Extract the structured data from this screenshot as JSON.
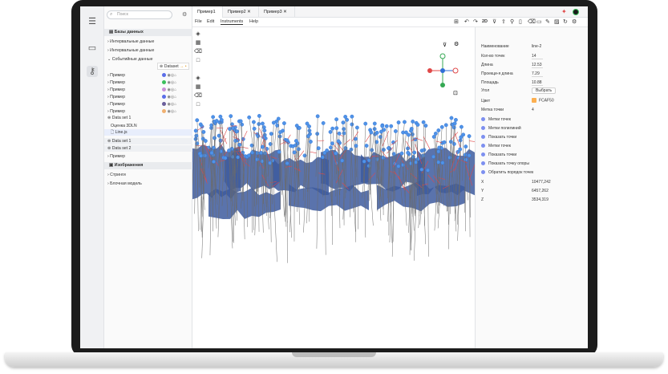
{
  "search": {
    "placeholder": "Поиск"
  },
  "tabs": [
    {
      "label": "Пример1",
      "closable": false
    },
    {
      "label": "Пример2",
      "closable": true
    },
    {
      "label": "Пример3",
      "closable": true
    }
  ],
  "menu": [
    "File",
    "Edit",
    "Instruments",
    "Help"
  ],
  "toolbar": {
    "mode_label": "2D"
  },
  "sidebar": {
    "databases_title": "Базы данных",
    "interval_1": "Интервальные данные",
    "interval_2": "Интервальные данные",
    "event": "Событийные данные",
    "dataset_label": "Dataset",
    "examples": [
      {
        "label": "Пример",
        "color": "#5b6ee8"
      },
      {
        "label": "Пример",
        "color": "#3cbf5c"
      },
      {
        "label": "Пример",
        "color": "#c98fd8"
      },
      {
        "label": "Пример",
        "color": "#5b6ee8"
      },
      {
        "label": "Пример",
        "color": "#6a5e9a"
      },
      {
        "label": "Пример",
        "color": "#f0b070"
      }
    ],
    "dataset1": "Data set 1",
    "estimate": "Оценка 3DLN",
    "line_file": "Line.js",
    "dataset1b": "Data set 1",
    "dataset2": "Data set 2",
    "images_title": "Изображения",
    "example_last": "Пример",
    "strings": "Стринги",
    "block_model": "Блочная модель"
  },
  "props": {
    "name_label": "Наименование",
    "name_value": "line-2",
    "count_label": "Кол-во точек",
    "count_value": "14",
    "length_label": "Длина",
    "length_value": "12.53",
    "proj_label": "Проекци-я длина",
    "proj_value": "7.29",
    "area_label": "Площадь",
    "area_value": "10.88",
    "angle_label": "Угол",
    "angle_button": "Выбрать",
    "color_label": "Цвет",
    "color_value": "FCAF50",
    "mark_label": "Метка точки",
    "mark_value": "4",
    "checks": [
      "Метки точек",
      "Метки полилиний",
      "Показать точки",
      "Метки точек",
      "Показать точки",
      "Показать точку опоры",
      "Обратить порядок точек"
    ],
    "x_label": "X",
    "x_value": "10477,242",
    "y_label": "Y",
    "y_value": "6457,262",
    "z_label": "Z",
    "z_value": "3534,319"
  },
  "colors": {
    "accent_point": "#4f93e8",
    "surface": "#3d5a9e",
    "prop_color": "#FCAF50",
    "axis_x": "#e04848",
    "axis_y": "#34a853",
    "axis_z": "#2f6fd6"
  }
}
